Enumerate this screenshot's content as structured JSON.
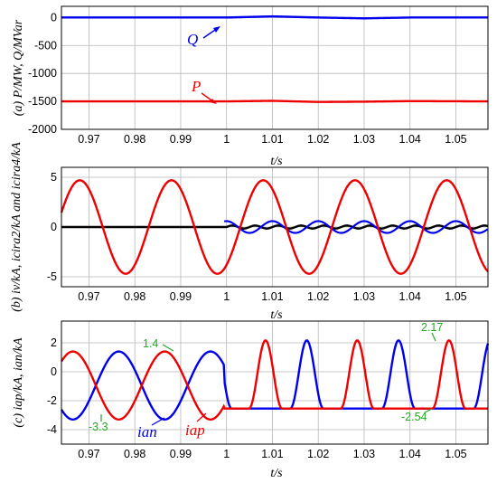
{
  "chart_data": [
    {
      "type": "line",
      "ylabel": "(a) P/MW, Q/MVar",
      "xlabel": "t/s",
      "xlim": [
        0.964,
        1.057
      ],
      "ylim": [
        -2000,
        200
      ],
      "xticks": [
        "0.97",
        "0.98",
        "0.99",
        "1",
        "1.01",
        "1.02",
        "1.03",
        "1.04",
        "1.05"
      ],
      "yticks": [
        "0",
        "-500",
        "-1000",
        "-1500",
        "-2000"
      ],
      "grid": true,
      "series": [
        {
          "name": "Q",
          "color": "#0000ee",
          "x": [
            0.964,
            1.0,
            1.01,
            1.02,
            1.03,
            1.04,
            1.057
          ],
          "values": [
            0,
            0,
            20,
            0,
            -15,
            0,
            0
          ]
        },
        {
          "name": "P",
          "color": "#ee0000",
          "x": [
            0.964,
            1.0,
            1.01,
            1.02,
            1.03,
            1.04,
            1.057
          ],
          "values": [
            -1500,
            -1500,
            -1490,
            -1510,
            -1505,
            -1495,
            -1500
          ]
        }
      ],
      "annotations": [
        {
          "text": "Q",
          "color": "#0000ee"
        },
        {
          "text": "P",
          "color": "#ee0000"
        }
      ]
    },
    {
      "type": "line",
      "ylabel": "(b) iv/kA, icira2/kA and icira4/kA",
      "xlabel": "t/s",
      "xlim": [
        0.964,
        1.057
      ],
      "ylim": [
        -6,
        6
      ],
      "xticks": [
        "0.97",
        "0.98",
        "0.99",
        "1",
        "1.01",
        "1.02",
        "1.03",
        "1.04",
        "1.05"
      ],
      "yticks": [
        "5",
        "0",
        "-5"
      ],
      "grid": true,
      "series": [
        {
          "name": "i_v",
          "color": "#ee0000",
          "amplitude": 4.7,
          "period": 0.02,
          "peak_at": 0.968
        },
        {
          "name": "i_cira2",
          "color": "#0000ee",
          "amplitude_after_1s": 0.85,
          "period": 0.01,
          "start": 0.9995
        },
        {
          "name": "i_cira4",
          "color": "#000000",
          "amplitude_after_1s": 0.25,
          "period": 0.005
        }
      ]
    },
    {
      "type": "line",
      "ylabel": "(c) iap/kA, ian/kA",
      "xlabel": "t/s",
      "xlim": [
        0.964,
        1.057
      ],
      "ylim": [
        -5,
        3.5
      ],
      "xticks": [
        "0.97",
        "0.98",
        "0.99",
        "1",
        "1.01",
        "1.02",
        "1.03",
        "1.04",
        "1.05"
      ],
      "yticks": [
        "2",
        "0",
        "-2",
        "-4"
      ],
      "grid": true,
      "series": [
        {
          "name": "i_ap",
          "color": "#ee0000",
          "max_before": 1.4,
          "min_before": -3.3,
          "max_after": 2.17,
          "min_after": -2.54
        },
        {
          "name": "i_an",
          "color": "#0000ee",
          "max_before": 1.4,
          "min_before": -3.3,
          "max_after": 2.17,
          "min_after": -2.54
        }
      ],
      "annotations": [
        {
          "text": "1.4",
          "color": "#22aa22"
        },
        {
          "text": "-3.3",
          "color": "#22aa22"
        },
        {
          "text": "2.17",
          "color": "#22aa22"
        },
        {
          "text": "-2.54",
          "color": "#22aa22"
        },
        {
          "text": "ian",
          "color": "#0000ee"
        },
        {
          "text": "iap",
          "color": "#ee0000"
        }
      ]
    }
  ]
}
